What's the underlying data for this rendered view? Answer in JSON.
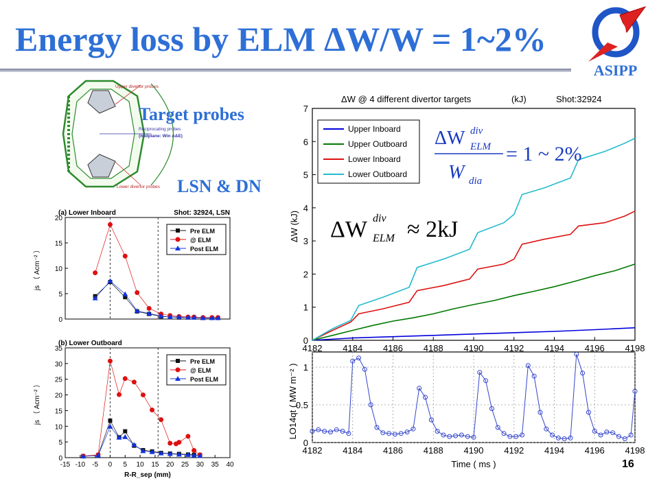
{
  "slide": {
    "title": "Energy loss by ELM ΔW/W = 1~2%",
    "logo_text": "ASIPP",
    "logo_icon": "asipp-logo-icon",
    "page_number": "16",
    "labels": {
      "target_probes": "Target probes",
      "lsn_dn": "LSN & DN"
    },
    "colors": {
      "title": "#2e6fd6",
      "accent_red": "#cc2222"
    }
  },
  "diagram": {
    "labels": [
      "Upper divertor probes",
      "Reciprocating probes",
      "(midplane: Win A&E)",
      "Lower divertor probes"
    ]
  },
  "chart_data": [
    {
      "id": "energy",
      "type": "line",
      "title": "ΔW @  4 different divertor targets",
      "title_unit": "(kJ)",
      "title_shot": "Shot:32924",
      "ylabel": "ΔW     (kJ)",
      "xlim": [
        4182,
        4198
      ],
      "ylim": [
        0,
        7
      ],
      "xticks": [
        4182,
        4184,
        4186,
        4188,
        4190,
        4192,
        4194,
        4196,
        4198
      ],
      "yticks": [
        0,
        1,
        2,
        3,
        4,
        5,
        6,
        7
      ],
      "legend_position": "top-left",
      "series": [
        {
          "name": "Upper Inboard",
          "color": "#0000dd",
          "points": [
            [
              4182,
              0
            ],
            [
              4184,
              0.07
            ],
            [
              4186,
              0.11
            ],
            [
              4188,
              0.15
            ],
            [
              4190,
              0.19
            ],
            [
              4192,
              0.23
            ],
            [
              4194,
              0.27
            ],
            [
              4196,
              0.32
            ],
            [
              4198,
              0.38
            ]
          ]
        },
        {
          "name": "Upper Outboard",
          "color": "#007700",
          "points": [
            [
              4182,
              0
            ],
            [
              4183,
              0.15
            ],
            [
              4184,
              0.3
            ],
            [
              4185,
              0.45
            ],
            [
              4186,
              0.58
            ],
            [
              4187,
              0.68
            ],
            [
              4188,
              0.8
            ],
            [
              4189,
              0.95
            ],
            [
              4190,
              1.08
            ],
            [
              4191,
              1.2
            ],
            [
              4192,
              1.35
            ],
            [
              4193,
              1.48
            ],
            [
              4194,
              1.62
            ],
            [
              4195,
              1.78
            ],
            [
              4196,
              1.95
            ],
            [
              4197,
              2.1
            ],
            [
              4198,
              2.3
            ]
          ]
        },
        {
          "name": "Lower Inboard",
          "color": "#dd1111",
          "points": [
            [
              4182,
              0
            ],
            [
              4183,
              0.3
            ],
            [
              4183.9,
              0.55
            ],
            [
              4184.3,
              0.8
            ],
            [
              4185.5,
              0.95
            ],
            [
              4186.8,
              1.15
            ],
            [
              4187.2,
              1.5
            ],
            [
              4188.5,
              1.65
            ],
            [
              4189.8,
              1.85
            ],
            [
              4190.2,
              2.15
            ],
            [
              4191.5,
              2.3
            ],
            [
              4192,
              2.45
            ],
            [
              4192.4,
              2.9
            ],
            [
              4193.5,
              3.05
            ],
            [
              4194.8,
              3.2
            ],
            [
              4195.2,
              3.45
            ],
            [
              4196.5,
              3.55
            ],
            [
              4197.5,
              3.75
            ],
            [
              4198,
              3.9
            ]
          ]
        },
        {
          "name": "Lower Outboard",
          "color": "#22bbcc",
          "points": [
            [
              4182,
              0
            ],
            [
              4183,
              0.35
            ],
            [
              4183.9,
              0.6
            ],
            [
              4184.3,
              1.05
            ],
            [
              4185.5,
              1.3
            ],
            [
              4186.8,
              1.6
            ],
            [
              4187.2,
              2.2
            ],
            [
              4188.5,
              2.45
            ],
            [
              4189.8,
              2.75
            ],
            [
              4190.2,
              3.25
            ],
            [
              4191.5,
              3.55
            ],
            [
              4192,
              3.8
            ],
            [
              4192.4,
              4.4
            ],
            [
              4193.5,
              4.6
            ],
            [
              4194.8,
              4.9
            ],
            [
              4195.2,
              5.45
            ],
            [
              4196.5,
              5.7
            ],
            [
              4197.5,
              5.95
            ],
            [
              4198,
              6.1
            ]
          ]
        }
      ],
      "annotations": [
        "ΔW_ELM^div / W_dia = 1 ~ 2%",
        "ΔW_ELM^div ≈ 2kJ"
      ]
    },
    {
      "id": "lo14qt",
      "type": "line",
      "ylabel": "LO14qt ( MW m⁻² )",
      "xlabel": "Time  ( ms )",
      "xlim": [
        4182,
        4198
      ],
      "ylim": [
        0,
        1.2
      ],
      "xticks": [
        4182,
        4184,
        4186,
        4188,
        4190,
        4192,
        4194,
        4196,
        4198
      ],
      "yticks": [
        0,
        0.5,
        1
      ],
      "yticklabels": [
        "0",
        "0.5",
        "1"
      ],
      "grid": "dotted",
      "series": [
        {
          "name": "",
          "color": "#3344cc",
          "marker": "circle",
          "points": [
            [
              4182,
              0.15
            ],
            [
              4182.3,
              0.17
            ],
            [
              4182.6,
              0.15
            ],
            [
              4182.9,
              0.14
            ],
            [
              4183.2,
              0.17
            ],
            [
              4183.5,
              0.15
            ],
            [
              4183.8,
              0.12
            ],
            [
              4184.0,
              1.08
            ],
            [
              4184.3,
              1.12
            ],
            [
              4184.6,
              0.97
            ],
            [
              4184.9,
              0.5
            ],
            [
              4185.2,
              0.2
            ],
            [
              4185.5,
              0.13
            ],
            [
              4185.8,
              0.12
            ],
            [
              4186.1,
              0.11
            ],
            [
              4186.4,
              0.12
            ],
            [
              4186.7,
              0.14
            ],
            [
              4187.0,
              0.18
            ],
            [
              4187.3,
              0.72
            ],
            [
              4187.6,
              0.6
            ],
            [
              4187.9,
              0.3
            ],
            [
              4188.2,
              0.15
            ],
            [
              4188.5,
              0.1
            ],
            [
              4188.8,
              0.08
            ],
            [
              4189.1,
              0.09
            ],
            [
              4189.4,
              0.1
            ],
            [
              4189.7,
              0.08
            ],
            [
              4190.0,
              0.07
            ],
            [
              4190.3,
              0.93
            ],
            [
              4190.6,
              0.82
            ],
            [
              4190.9,
              0.45
            ],
            [
              4191.2,
              0.2
            ],
            [
              4191.5,
              0.12
            ],
            [
              4191.8,
              0.08
            ],
            [
              4192.1,
              0.08
            ],
            [
              4192.4,
              0.1
            ],
            [
              4192.7,
              1.02
            ],
            [
              4193.0,
              0.88
            ],
            [
              4193.3,
              0.4
            ],
            [
              4193.6,
              0.18
            ],
            [
              4193.9,
              0.1
            ],
            [
              4194.2,
              0.06
            ],
            [
              4194.5,
              0.05
            ],
            [
              4194.8,
              0.06
            ],
            [
              4195.1,
              1.17
            ],
            [
              4195.4,
              0.92
            ],
            [
              4195.7,
              0.4
            ],
            [
              4196.0,
              0.15
            ],
            [
              4196.3,
              0.1
            ],
            [
              4196.6,
              0.14
            ],
            [
              4196.9,
              0.13
            ],
            [
              4197.2,
              0.08
            ],
            [
              4197.5,
              0.05
            ],
            [
              4197.8,
              0.1
            ],
            [
              4198.0,
              0.68
            ]
          ]
        }
      ]
    },
    {
      "id": "lower-inboard",
      "type": "line",
      "title": "(a) Lower Inboard",
      "shot": "Shot: 32924, LSN",
      "ylabel": "js （ Acm⁻² ）",
      "xlim": [
        -15,
        40
      ],
      "ylim": [
        0,
        20
      ],
      "yticks": [
        0,
        5,
        10,
        15,
        20
      ],
      "reference_lines": [
        0,
        16
      ],
      "legend_position": "top-right",
      "series": [
        {
          "name": "Pre ELM",
          "color": "#111111",
          "marker": "square",
          "points": [
            [
              -5,
              4.5
            ],
            [
              0,
              7.3
            ],
            [
              5,
              4.3
            ],
            [
              9,
              1.5
            ],
            [
              13,
              1
            ],
            [
              17,
              0.5
            ],
            [
              20,
              0.4
            ],
            [
              23,
              0.3
            ],
            [
              26,
              0.3
            ],
            [
              28,
              0.3
            ],
            [
              31,
              0.2
            ],
            [
              34,
              0.2
            ],
            [
              36,
              0.2
            ]
          ]
        },
        {
          "name": "@ ELM",
          "color": "#dd1111",
          "marker": "circle",
          "points": [
            [
              -5,
              9.1
            ],
            [
              0,
              18.6
            ],
            [
              5,
              12.4
            ],
            [
              9,
              5.2
            ],
            [
              13,
              2.1
            ],
            [
              17,
              1
            ],
            [
              20,
              0.7
            ],
            [
              23,
              0.5
            ],
            [
              26,
              0.4
            ],
            [
              28,
              0.4
            ],
            [
              31,
              0.3
            ],
            [
              34,
              0.3
            ],
            [
              36,
              0.3
            ]
          ]
        },
        {
          "name": "Post ELM",
          "color": "#1133dd",
          "marker": "triangle",
          "points": [
            [
              -5,
              4.1
            ],
            [
              0,
              7.5
            ],
            [
              5,
              4.9
            ],
            [
              9,
              1.6
            ],
            [
              13,
              1.1
            ],
            [
              17,
              0.6
            ],
            [
              20,
              0.4
            ],
            [
              23,
              0.4
            ],
            [
              26,
              0.3
            ],
            [
              28,
              0.3
            ],
            [
              31,
              0.2
            ],
            [
              34,
              0.2
            ],
            [
              36,
              0.2
            ]
          ]
        }
      ]
    },
    {
      "id": "lower-outboard",
      "type": "line",
      "title": "(b) Lower Outboard",
      "ylabel": "js （ Acm⁻² ）",
      "xlabel": "R-R_sep (mm)",
      "xlim": [
        -15,
        40
      ],
      "ylim": [
        0,
        35
      ],
      "xticks": [
        -15,
        -10,
        -5,
        0,
        5,
        10,
        15,
        20,
        25,
        30,
        35,
        40
      ],
      "yticks": [
        0,
        5,
        10,
        15,
        20,
        25,
        30,
        35
      ],
      "reference_lines": [
        0,
        16
      ],
      "legend_position": "top-right",
      "series": [
        {
          "name": "Pre ELM",
          "color": "#111111",
          "marker": "square",
          "points": [
            [
              -9,
              0.5
            ],
            [
              -4,
              0.8
            ],
            [
              0,
              11.8
            ],
            [
              3,
              6.5
            ],
            [
              5,
              8.4
            ],
            [
              8,
              3.8
            ],
            [
              11,
              2.4
            ],
            [
              14,
              2
            ],
            [
              17,
              1.5
            ],
            [
              20,
              1.3
            ],
            [
              23,
              1.2
            ],
            [
              26,
              1
            ],
            [
              28,
              0.9
            ],
            [
              30,
              0.8
            ]
          ]
        },
        {
          "name": "@ ELM",
          "color": "#dd1111",
          "marker": "circle",
          "points": [
            [
              -9,
              0.5
            ],
            [
              -4,
              0.9
            ],
            [
              0,
              30.8
            ],
            [
              3,
              20.1
            ],
            [
              5,
              25.2
            ],
            [
              8,
              24.1
            ],
            [
              11,
              20
            ],
            [
              14,
              15.2
            ],
            [
              17,
              12.1
            ],
            [
              20,
              4.6
            ],
            [
              22,
              4.4
            ],
            [
              23,
              4.9
            ],
            [
              26,
              6.8
            ],
            [
              28,
              2.3
            ],
            [
              30,
              0.9
            ]
          ]
        },
        {
          "name": "Post ELM",
          "color": "#1133dd",
          "marker": "triangle",
          "points": [
            [
              -9,
              0.4
            ],
            [
              -4,
              0.7
            ],
            [
              0,
              9.9
            ],
            [
              3,
              6.4
            ],
            [
              5,
              6.6
            ],
            [
              8,
              4.1
            ],
            [
              11,
              2.1
            ],
            [
              14,
              1.8
            ],
            [
              17,
              1.4
            ],
            [
              20,
              1.2
            ],
            [
              23,
              1
            ],
            [
              26,
              0.9
            ],
            [
              28,
              0.7
            ],
            [
              30,
              0.6
            ]
          ]
        }
      ]
    }
  ]
}
